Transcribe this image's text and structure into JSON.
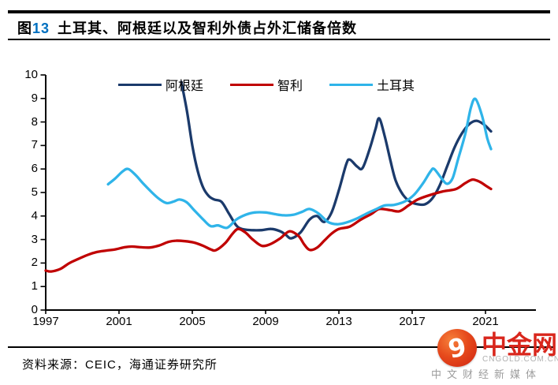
{
  "title": {
    "figure_char": "图",
    "figure_num": "13",
    "text": "土耳其、阿根廷以及智利外债占外汇储备倍数"
  },
  "footer": {
    "source": "资料来源：CEIC，海通证券研究所"
  },
  "watermark": {
    "brand": "中金网",
    "domain": "CNGOLD.COM.CN",
    "tagline": "中文财经新媒体",
    "icon": "cloud-swirl-icon"
  },
  "colors": {
    "argentina": "#1b3a6b",
    "chile": "#c00000",
    "turkey": "#2fb4e9",
    "figure_num_blue": "#0070c0",
    "brand_red": "#d9261c",
    "axis_black": "#000000"
  },
  "chart_data": {
    "type": "line",
    "title": "土耳其、阿根廷以及智利外债占外汇储备倍数",
    "xlabel": "",
    "ylabel": "",
    "ylim": [
      0,
      10
    ],
    "yticks": [
      0,
      1,
      2,
      3,
      4,
      5,
      6,
      7,
      8,
      9,
      10
    ],
    "xticks": [
      1997,
      2001,
      2005,
      2009,
      2013,
      2017,
      2021
    ],
    "xlim": [
      1997,
      2023.7
    ],
    "grid": false,
    "legend_position": "top",
    "series": [
      {
        "name": "阿根廷",
        "id": "argentina",
        "color": "#1b3a6b",
        "points": [
          [
            2004.4,
            9.7
          ],
          [
            2004.7,
            8.5
          ],
          [
            2005.0,
            7.0
          ],
          [
            2005.3,
            5.9
          ],
          [
            2005.6,
            5.2
          ],
          [
            2005.9,
            4.85
          ],
          [
            2006.2,
            4.7
          ],
          [
            2006.6,
            4.6
          ],
          [
            2007.0,
            4.1
          ],
          [
            2007.4,
            3.6
          ],
          [
            2007.7,
            3.45
          ],
          [
            2008.2,
            3.4
          ],
          [
            2008.8,
            3.4
          ],
          [
            2009.3,
            3.45
          ],
          [
            2009.8,
            3.35
          ],
          [
            2010.1,
            3.2
          ],
          [
            2010.4,
            3.05
          ],
          [
            2010.9,
            3.3
          ],
          [
            2011.4,
            3.85
          ],
          [
            2011.8,
            4.0
          ],
          [
            2012.2,
            3.75
          ],
          [
            2012.6,
            4.15
          ],
          [
            2013.0,
            5.1
          ],
          [
            2013.4,
            6.2
          ],
          [
            2013.6,
            6.4
          ],
          [
            2014.0,
            6.1
          ],
          [
            2014.3,
            6.05
          ],
          [
            2014.7,
            6.9
          ],
          [
            2015.0,
            7.7
          ],
          [
            2015.2,
            8.15
          ],
          [
            2015.5,
            7.4
          ],
          [
            2015.8,
            6.4
          ],
          [
            2016.1,
            5.5
          ],
          [
            2016.5,
            4.9
          ],
          [
            2016.9,
            4.6
          ],
          [
            2017.3,
            4.5
          ],
          [
            2017.7,
            4.5
          ],
          [
            2018.1,
            4.75
          ],
          [
            2018.5,
            5.3
          ],
          [
            2018.9,
            6.1
          ],
          [
            2019.3,
            6.9
          ],
          [
            2019.7,
            7.5
          ],
          [
            2020.1,
            7.9
          ],
          [
            2020.5,
            8.05
          ],
          [
            2020.9,
            7.9
          ],
          [
            2021.3,
            7.6
          ]
        ]
      },
      {
        "name": "智利",
        "id": "chile",
        "color": "#c00000",
        "points": [
          [
            1997.0,
            1.68
          ],
          [
            1997.3,
            1.64
          ],
          [
            1997.8,
            1.75
          ],
          [
            1998.3,
            2.0
          ],
          [
            1998.8,
            2.18
          ],
          [
            1999.3,
            2.35
          ],
          [
            1999.8,
            2.47
          ],
          [
            2000.3,
            2.53
          ],
          [
            2000.8,
            2.58
          ],
          [
            2001.3,
            2.67
          ],
          [
            2001.7,
            2.7
          ],
          [
            2002.2,
            2.67
          ],
          [
            2002.7,
            2.66
          ],
          [
            2003.2,
            2.75
          ],
          [
            2003.7,
            2.9
          ],
          [
            2004.1,
            2.95
          ],
          [
            2004.6,
            2.93
          ],
          [
            2005.1,
            2.87
          ],
          [
            2005.6,
            2.73
          ],
          [
            2006.0,
            2.58
          ],
          [
            2006.3,
            2.55
          ],
          [
            2006.8,
            2.85
          ],
          [
            2007.2,
            3.25
          ],
          [
            2007.5,
            3.45
          ],
          [
            2007.9,
            3.3
          ],
          [
            2008.3,
            3.0
          ],
          [
            2008.8,
            2.73
          ],
          [
            2009.3,
            2.82
          ],
          [
            2009.8,
            3.05
          ],
          [
            2010.3,
            3.35
          ],
          [
            2010.8,
            3.15
          ],
          [
            2011.1,
            2.8
          ],
          [
            2011.4,
            2.56
          ],
          [
            2011.8,
            2.65
          ],
          [
            2012.2,
            2.95
          ],
          [
            2012.6,
            3.25
          ],
          [
            2013.0,
            3.45
          ],
          [
            2013.6,
            3.55
          ],
          [
            2014.2,
            3.85
          ],
          [
            2014.8,
            4.1
          ],
          [
            2015.2,
            4.3
          ],
          [
            2015.8,
            4.25
          ],
          [
            2016.3,
            4.2
          ],
          [
            2016.8,
            4.45
          ],
          [
            2017.3,
            4.7
          ],
          [
            2018.0,
            4.9
          ],
          [
            2018.7,
            5.05
          ],
          [
            2019.4,
            5.15
          ],
          [
            2019.9,
            5.4
          ],
          [
            2020.3,
            5.55
          ],
          [
            2020.7,
            5.45
          ],
          [
            2021.0,
            5.3
          ],
          [
            2021.3,
            5.15
          ]
        ]
      },
      {
        "name": "土耳其",
        "id": "turkey",
        "color": "#2fb4e9",
        "points": [
          [
            2000.4,
            5.35
          ],
          [
            2000.8,
            5.6
          ],
          [
            2001.2,
            5.9
          ],
          [
            2001.5,
            6.0
          ],
          [
            2001.9,
            5.75
          ],
          [
            2002.3,
            5.4
          ],
          [
            2002.8,
            5.0
          ],
          [
            2003.2,
            4.72
          ],
          [
            2003.6,
            4.55
          ],
          [
            2004.0,
            4.62
          ],
          [
            2004.3,
            4.7
          ],
          [
            2004.7,
            4.58
          ],
          [
            2005.1,
            4.25
          ],
          [
            2005.6,
            3.85
          ],
          [
            2006.0,
            3.57
          ],
          [
            2006.4,
            3.6
          ],
          [
            2006.9,
            3.5
          ],
          [
            2007.4,
            3.85
          ],
          [
            2007.9,
            4.05
          ],
          [
            2008.4,
            4.15
          ],
          [
            2009.0,
            4.15
          ],
          [
            2009.5,
            4.08
          ],
          [
            2010.0,
            4.03
          ],
          [
            2010.5,
            4.05
          ],
          [
            2011.0,
            4.18
          ],
          [
            2011.4,
            4.3
          ],
          [
            2011.9,
            4.1
          ],
          [
            2012.4,
            3.75
          ],
          [
            2012.9,
            3.65
          ],
          [
            2013.4,
            3.72
          ],
          [
            2014.0,
            3.9
          ],
          [
            2014.5,
            4.1
          ],
          [
            2015.0,
            4.28
          ],
          [
            2015.5,
            4.45
          ],
          [
            2016.0,
            4.47
          ],
          [
            2016.6,
            4.62
          ],
          [
            2017.1,
            4.9
          ],
          [
            2017.6,
            5.4
          ],
          [
            2018.0,
            5.9
          ],
          [
            2018.2,
            6.0
          ],
          [
            2018.6,
            5.6
          ],
          [
            2018.9,
            5.37
          ],
          [
            2019.2,
            5.6
          ],
          [
            2019.5,
            6.4
          ],
          [
            2019.9,
            7.5
          ],
          [
            2020.2,
            8.6
          ],
          [
            2020.45,
            8.98
          ],
          [
            2020.8,
            8.3
          ],
          [
            2021.1,
            7.3
          ],
          [
            2021.3,
            6.85
          ]
        ]
      }
    ]
  }
}
